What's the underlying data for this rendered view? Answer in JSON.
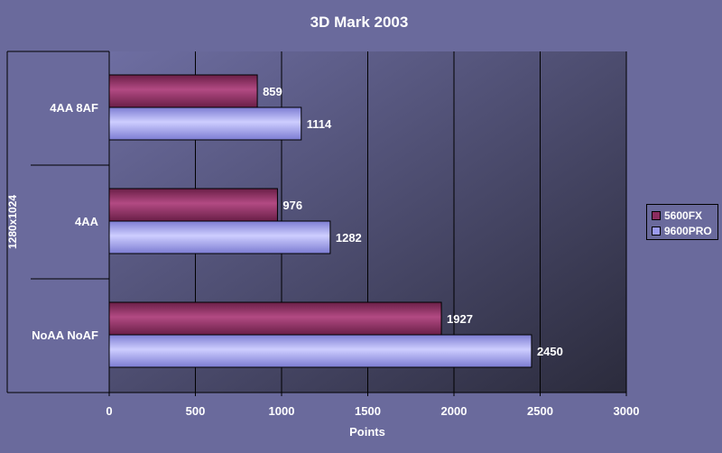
{
  "chart_data": {
    "type": "bar",
    "orientation": "horizontal",
    "title": "3D Mark 2003",
    "xlabel": "Points",
    "ylabel": "1280x1024",
    "categories": [
      "4AA 8AF",
      "4AA",
      "NoAA NoAF"
    ],
    "series": [
      {
        "name": "5600FX",
        "values": [
          859,
          976,
          1927
        ],
        "color": "#8b2c5f"
      },
      {
        "name": "9600PRO",
        "values": [
          1114,
          1282,
          2450
        ],
        "color": "#9a9aee"
      }
    ],
    "xlim": [
      0,
      3000
    ],
    "xticks": [
      0,
      500,
      1000,
      1500,
      2000,
      2500,
      3000
    ],
    "grid": true,
    "legend": "right",
    "background": "#6a6a9c",
    "plot_gradient": [
      "#6e6ea2",
      "#2b2b3c"
    ]
  }
}
